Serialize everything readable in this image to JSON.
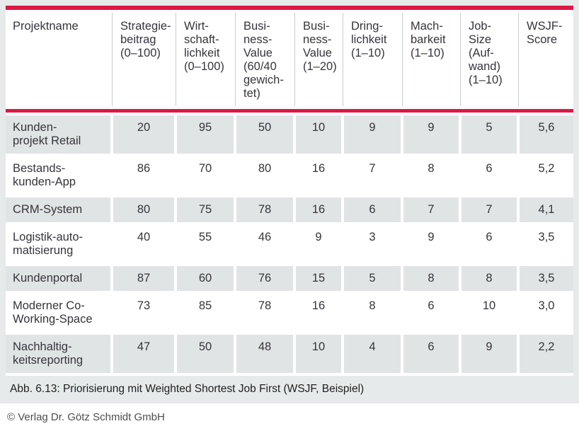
{
  "colors": {
    "accent_red": "#de1746",
    "cell_gray": "#e1e4e4",
    "figure_background": "#e7eaea",
    "header_separator": "#c9cdcd",
    "table_text": "#35353c",
    "copyright_text": "#4e4e4e"
  },
  "table": {
    "columns": [
      {
        "key": "projektname",
        "label": "Projektname"
      },
      {
        "key": "strategiebeitrag",
        "label": "Strategie-\nbeitrag\n(0–100)"
      },
      {
        "key": "wirtschaftlichkeit",
        "label": "Wirt-\nschaft-\nlichkeit\n(0–100)"
      },
      {
        "key": "business-value-gewichtet",
        "label": "Busi-\nness-\nValue\n(60/40\ngewich-\ntet)"
      },
      {
        "key": "business-value-1-20",
        "label": "Busi-\nness-\nValue\n(1–20)"
      },
      {
        "key": "dringlichkeit",
        "label": "Dring-\nlichkeit\n(1–10)"
      },
      {
        "key": "machbarkeit",
        "label": "Mach-\nbarkeit\n(1–10)"
      },
      {
        "key": "job-size",
        "label": "Job-\nSize\n(Auf-\nwand)\n(1–10)"
      },
      {
        "key": "wsjf-score",
        "label": "WSJF-\nScore"
      }
    ],
    "rows": [
      {
        "name": "Kunden-\nprojekt Retail",
        "values": [
          "20",
          "95",
          "50",
          "10",
          "9",
          "9",
          "5",
          "5,6"
        ]
      },
      {
        "name": "Bestands-\nkunden-App",
        "values": [
          "86",
          "70",
          "80",
          "16",
          "7",
          "8",
          "6",
          "5,2"
        ]
      },
      {
        "name": "CRM-System",
        "values": [
          "80",
          "75",
          "78",
          "16",
          "6",
          "7",
          "7",
          "4,1"
        ]
      },
      {
        "name": "Logistik-auto-\nmatisierung",
        "values": [
          "40",
          "55",
          "46",
          "9",
          "3",
          "9",
          "6",
          "3,5"
        ]
      },
      {
        "name": "Kundenportal",
        "values": [
          "87",
          "60",
          "76",
          "15",
          "5",
          "8",
          "8",
          "3,5"
        ]
      },
      {
        "name": "Moderner Co-\nWorking-Space",
        "values": [
          "73",
          "85",
          "78",
          "16",
          "8",
          "6",
          "10",
          "3,0"
        ]
      },
      {
        "name": "Nachhaltig-\nkeitsreporting",
        "values": [
          "47",
          "50",
          "48",
          "10",
          "4",
          "6",
          "9",
          "2,2"
        ]
      }
    ]
  },
  "caption": "Abb. 6.13: Priorisierung mit Weighted Shortest Job First (WSJF, Beispiel)",
  "copyright": "© Verlag Dr. Götz Schmidt GmbH"
}
